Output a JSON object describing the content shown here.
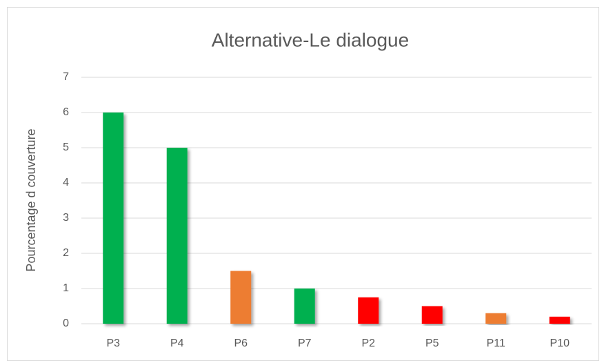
{
  "chart_data": {
    "type": "bar",
    "title": "Alternative-Le dialogue",
    "y_label": "Pourcentage d couverture",
    "categories": [
      "P3",
      "P4",
      "P6",
      "P7",
      "P2",
      "P5",
      "P11",
      "P10"
    ],
    "values": [
      6,
      5,
      1.5,
      1,
      0.75,
      0.5,
      0.3,
      0.2
    ],
    "colors": [
      "#00b050",
      "#00b050",
      "#ed7d31",
      "#00b050",
      "#ff0000",
      "#ff0000",
      "#ed7d31",
      "#ff0000"
    ],
    "ylim": [
      0,
      7
    ],
    "yticks": [
      0,
      1,
      2,
      3,
      4,
      5,
      6,
      7
    ],
    "grid": true
  }
}
